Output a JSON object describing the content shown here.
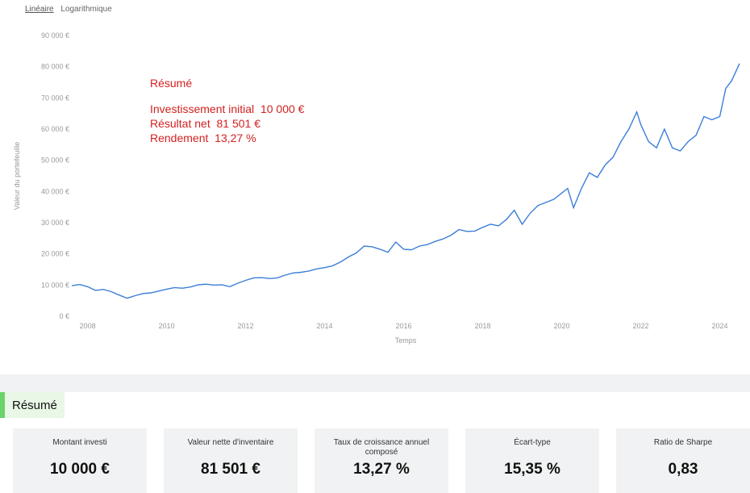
{
  "scale_tabs": {
    "linear": "Linéaire",
    "log": "Logarithmique"
  },
  "chart_data": {
    "type": "line",
    "xlabel": "Temps",
    "ylabel": "Valeur du portefeuille",
    "ylim": [
      0,
      90000
    ],
    "xlim": [
      2007.6,
      2024.5
    ],
    "y_ticks": [
      "0 €",
      "10 000 €",
      "20 000 €",
      "30 000 €",
      "40 000 €",
      "50 000 €",
      "60 000 €",
      "70 000 €",
      "80 000 €",
      "90 000 €"
    ],
    "x_ticks": [
      "2008",
      "2010",
      "2012",
      "2014",
      "2016",
      "2018",
      "2020",
      "2022",
      "2024"
    ],
    "line_color": "#3b7fd9",
    "grid": false,
    "series": [
      {
        "x": [
          2007.6,
          2007.8,
          2008.0,
          2008.2,
          2008.4,
          2008.6,
          2008.8,
          2009.0,
          2009.2,
          2009.4,
          2009.6,
          2009.8,
          2010.0,
          2010.2,
          2010.4,
          2010.6,
          2010.8,
          2011.0,
          2011.2,
          2011.4,
          2011.6,
          2011.8,
          2012.0,
          2012.2,
          2012.4,
          2012.6,
          2012.8,
          2013.0,
          2013.2,
          2013.4,
          2013.6,
          2013.8,
          2014.0,
          2014.2,
          2014.4,
          2014.6,
          2014.8,
          2015.0,
          2015.2,
          2015.4,
          2015.6,
          2015.8,
          2016.0,
          2016.2,
          2016.4,
          2016.6,
          2016.8,
          2017.0,
          2017.2,
          2017.4,
          2017.6,
          2017.8,
          2018.0,
          2018.2,
          2018.4,
          2018.6,
          2018.8,
          2019.0,
          2019.2,
          2019.4,
          2019.6,
          2019.8,
          2020.0,
          2020.15,
          2020.3,
          2020.5,
          2020.7,
          2020.9,
          2021.1,
          2021.3,
          2021.5,
          2021.7,
          2021.9,
          2022.0,
          2022.2,
          2022.4,
          2022.6,
          2022.8,
          2023.0,
          2023.2,
          2023.4,
          2023.6,
          2023.8,
          2024.0,
          2024.15,
          2024.3,
          2024.5
        ],
        "y": [
          9800,
          10200,
          9500,
          8300,
          8600,
          7900,
          6800,
          5800,
          6600,
          7300,
          7500,
          8100,
          8700,
          9200,
          9000,
          9400,
          10100,
          10300,
          10000,
          10100,
          9500,
          10600,
          11500,
          12300,
          12400,
          12100,
          12300,
          13200,
          13900,
          14100,
          14500,
          15200,
          15600,
          16200,
          17400,
          19000,
          20300,
          22500,
          22300,
          21500,
          20500,
          23800,
          21500,
          21300,
          22500,
          23000,
          24000,
          24800,
          26000,
          27800,
          27200,
          27300,
          28500,
          29500,
          29000,
          31000,
          34000,
          29500,
          33000,
          35500,
          36500,
          37500,
          39500,
          41000,
          34800,
          41000,
          46000,
          44500,
          48500,
          51000,
          56000,
          60000,
          65500,
          61500,
          56000,
          54000,
          60000,
          54000,
          53000,
          56000,
          58000,
          64000,
          63000,
          64000,
          73000,
          75500,
          81000
        ]
      }
    ]
  },
  "overlay_summary": {
    "heading": "Résumé",
    "initial": "Investissement initial  10 000 €",
    "result": "Résultat net  81 501 €",
    "return": "Rendement  13,27 %"
  },
  "section_title": "Résumé",
  "cards": [
    {
      "label": "Montant investi",
      "value": "10 000 €"
    },
    {
      "label": "Valeur nette d'inventaire",
      "value": "81 501 €"
    },
    {
      "label": "Taux de croissance annuel composé",
      "value": "13,27 %"
    },
    {
      "label": "Écart-type",
      "value": "15,35 %"
    },
    {
      "label": "Ratio de Sharpe",
      "value": "0,83"
    }
  ]
}
